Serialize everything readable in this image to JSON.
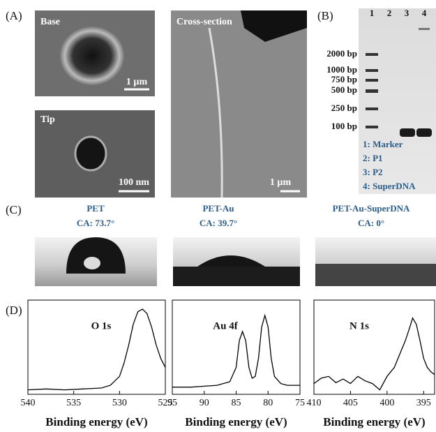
{
  "panels": {
    "A": {
      "label": "(A)",
      "base": {
        "title": "Base",
        "scale": "1 µm"
      },
      "tip": {
        "title": "Tip",
        "scale": "100 nm"
      },
      "cross": {
        "title": "Cross-section",
        "scale": "1 µm"
      }
    },
    "B": {
      "label": "(B)",
      "lanes": [
        "1",
        "2",
        "3",
        "4"
      ],
      "ladder": [
        "2000 bp",
        "1000 bp",
        "750 bp",
        "500 bp",
        "250 bp",
        "100 bp"
      ],
      "legend": [
        "1: Marker",
        "2: P1",
        "3: P2",
        "4: SuperDNA"
      ]
    },
    "C": {
      "label": "(C)",
      "samples": [
        {
          "name": "PET",
          "ca": "CA: 73.7°"
        },
        {
          "name": "PET-Au",
          "ca": "CA: 39.7°"
        },
        {
          "name": "PET-Au-SuperDNA",
          "ca": "CA: 0°"
        }
      ]
    },
    "D": {
      "label": "(D)"
    }
  },
  "chart_data": [
    {
      "type": "line",
      "annotation": "O 1s",
      "xlabel": "Binding energy (eV)",
      "color": "#000",
      "x": [
        540,
        538,
        536,
        534,
        532,
        531,
        530,
        529.5,
        529,
        528.5,
        528,
        527.5,
        527,
        526.5,
        526,
        525.5,
        525
      ],
      "values": [
        0.05,
        0.06,
        0.05,
        0.06,
        0.07,
        0.1,
        0.2,
        0.35,
        0.55,
        0.78,
        0.92,
        0.95,
        0.9,
        0.75,
        0.55,
        0.4,
        0.3
      ],
      "xlim": [
        540,
        525
      ],
      "xticks": [
        540,
        535,
        530,
        525
      ],
      "ylim": [
        0,
        1.05
      ]
    },
    {
      "type": "line",
      "annotation": "Au 4f",
      "xlabel": "Binding energy (eV)",
      "color": "#000",
      "x": [
        95,
        92,
        90,
        88,
        86,
        85,
        84.5,
        84,
        83.5,
        83,
        82.5,
        82,
        81.5,
        81,
        80.5,
        80,
        79.5,
        79,
        78,
        77,
        75
      ],
      "values": [
        0.08,
        0.08,
        0.09,
        0.1,
        0.14,
        0.3,
        0.6,
        0.7,
        0.6,
        0.3,
        0.18,
        0.2,
        0.4,
        0.75,
        0.88,
        0.75,
        0.4,
        0.2,
        0.12,
        0.1,
        0.1
      ],
      "xlim": [
        95,
        75
      ],
      "xticks": [
        95,
        90,
        85,
        80,
        75
      ],
      "ylim": [
        0,
        1.05
      ]
    },
    {
      "type": "line",
      "annotation": "N 1s",
      "xlabel": "Binding energy (eV)",
      "color": "#000",
      "x": [
        410,
        409,
        408,
        407,
        406,
        405,
        404,
        403,
        402,
        401,
        400,
        399,
        398,
        397.5,
        397,
        396.5,
        396,
        395.5,
        395,
        394.5,
        394,
        393.5
      ],
      "values": [
        0.12,
        0.18,
        0.2,
        0.13,
        0.17,
        0.12,
        0.2,
        0.15,
        0.12,
        0.05,
        0.2,
        0.3,
        0.5,
        0.6,
        0.72,
        0.85,
        0.78,
        0.6,
        0.4,
        0.3,
        0.25,
        0.22
      ],
      "xlim": [
        410,
        393.5
      ],
      "xticks": [
        410,
        405,
        400,
        395
      ],
      "ylim": [
        0,
        1.05
      ]
    }
  ]
}
